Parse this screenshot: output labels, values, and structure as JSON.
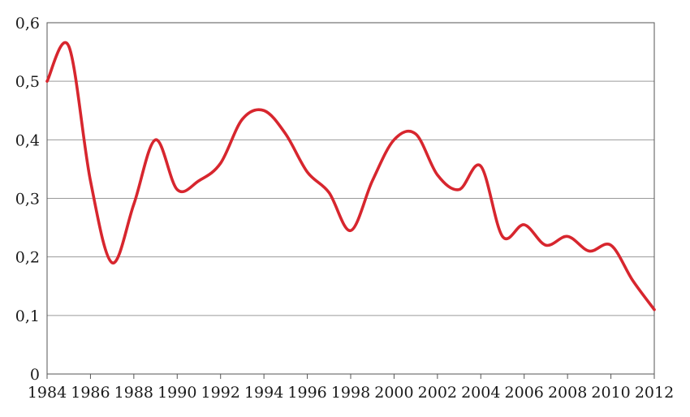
{
  "chart_data": {
    "type": "line",
    "title": "",
    "xlabel": "",
    "ylabel": "",
    "xlim": [
      1984,
      2012
    ],
    "ylim": [
      0,
      0.6
    ],
    "grid": true,
    "legend": "none",
    "x_ticks": [
      1984,
      1986,
      1988,
      1990,
      1992,
      1994,
      1996,
      1998,
      2000,
      2002,
      2004,
      2006,
      2008,
      2010,
      2012
    ],
    "x_tick_labels": [
      "1984",
      "1986",
      "1988",
      "1990",
      "1992",
      "1994",
      "1996",
      "1998",
      "2000",
      "2002",
      "2004",
      "2006",
      "2008",
      "2010",
      "2012"
    ],
    "y_ticks": [
      0,
      0.1,
      0.2,
      0.3,
      0.4,
      0.5,
      0.6
    ],
    "y_tick_labels": [
      "0",
      "0,1",
      "0,2",
      "0,3",
      "0,4",
      "0,5",
      "0,6"
    ],
    "series": [
      {
        "color": "#d7262e",
        "x": [
          1984,
          1985,
          1986,
          1987,
          1988,
          1989,
          1990,
          1991,
          1992,
          1993,
          1994,
          1995,
          1996,
          1997,
          1998,
          1999,
          2000,
          2001,
          2002,
          2003,
          2004,
          2005,
          2006,
          2007,
          2008,
          2009,
          2010,
          2011,
          2012
        ],
        "values": [
          0.5,
          0.56,
          0.33,
          0.19,
          0.29,
          0.4,
          0.315,
          0.33,
          0.36,
          0.435,
          0.45,
          0.41,
          0.345,
          0.31,
          0.245,
          0.33,
          0.4,
          0.41,
          0.34,
          0.315,
          0.355,
          0.235,
          0.255,
          0.22,
          0.235,
          0.21,
          0.22,
          0.16,
          0.11
        ]
      }
    ]
  }
}
